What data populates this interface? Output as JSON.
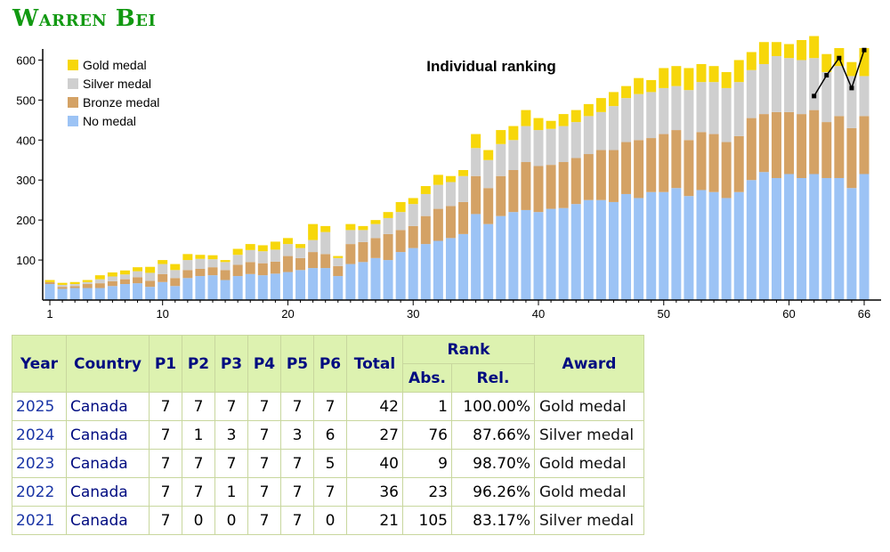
{
  "title": "Warren Bei",
  "chart_data": {
    "type": "bar",
    "title": "Individual ranking",
    "stacked": true,
    "xlabel": "",
    "ylabel": "",
    "ylim": [
      0,
      650
    ],
    "yticks": [
      100,
      200,
      300,
      400,
      500,
      600
    ],
    "xtick_labels": [
      "1",
      "10",
      "20",
      "30",
      "40",
      "50",
      "60",
      "66"
    ],
    "xtick_values": [
      1,
      10,
      20,
      30,
      40,
      50,
      60,
      66
    ],
    "grid": false,
    "legend_position": "top-left",
    "colors": {
      "Gold medal": "#f7d70a",
      "Silver medal": "#cfcfcf",
      "Bronze medal": "#d4a265",
      "No medal": "#9cc3f5"
    },
    "categories": [
      1,
      2,
      3,
      4,
      5,
      6,
      7,
      8,
      9,
      10,
      11,
      12,
      13,
      14,
      15,
      16,
      17,
      18,
      19,
      20,
      21,
      22,
      23,
      24,
      25,
      26,
      27,
      28,
      29,
      30,
      31,
      32,
      33,
      34,
      35,
      36,
      37,
      38,
      39,
      40,
      41,
      42,
      43,
      44,
      45,
      46,
      47,
      48,
      49,
      50,
      51,
      52,
      53,
      54,
      55,
      56,
      57,
      58,
      59,
      60,
      61,
      62,
      63,
      64,
      65,
      66
    ],
    "series": [
      {
        "name": "No medal",
        "values": [
          40,
          28,
          30,
          30,
          30,
          35,
          40,
          42,
          33,
          45,
          35,
          55,
          60,
          62,
          50,
          60,
          65,
          62,
          66,
          70,
          75,
          80,
          80,
          60,
          90,
          95,
          105,
          100,
          120,
          130,
          140,
          148,
          155,
          165,
          215,
          190,
          210,
          220,
          225,
          220,
          228,
          230,
          240,
          250,
          250,
          245,
          265,
          255,
          270,
          270,
          280,
          260,
          275,
          270,
          255,
          270,
          300,
          320,
          305,
          315,
          305,
          315,
          305,
          305,
          280,
          315
        ]
      },
      {
        "name": "Bronze medal",
        "values": [
          5,
          5,
          5,
          10,
          12,
          12,
          12,
          15,
          15,
          20,
          20,
          20,
          18,
          20,
          25,
          28,
          30,
          30,
          30,
          40,
          30,
          40,
          35,
          25,
          50,
          50,
          50,
          65,
          55,
          55,
          70,
          80,
          80,
          80,
          95,
          90,
          100,
          105,
          120,
          115,
          110,
          115,
          115,
          115,
          125,
          130,
          130,
          145,
          135,
          145,
          145,
          140,
          145,
          145,
          140,
          140,
          155,
          145,
          165,
          155,
          160,
          160,
          140,
          155,
          150,
          145
        ]
      },
      {
        "name": "Silver medal",
        "values": [
          0,
          5,
          5,
          5,
          10,
          12,
          12,
          15,
          20,
          25,
          20,
          25,
          25,
          20,
          20,
          25,
          30,
          30,
          30,
          30,
          25,
          30,
          55,
          20,
          35,
          30,
          35,
          40,
          45,
          55,
          55,
          60,
          60,
          65,
          70,
          70,
          80,
          75,
          90,
          90,
          90,
          90,
          90,
          95,
          95,
          110,
          110,
          115,
          115,
          115,
          110,
          125,
          125,
          130,
          135,
          135,
          120,
          125,
          140,
          135,
          135,
          130,
          125,
          125,
          130,
          100
        ]
      },
      {
        "name": "Gold medal",
        "values": [
          5,
          5,
          5,
          5,
          10,
          10,
          10,
          10,
          15,
          10,
          15,
          15,
          10,
          10,
          5,
          15,
          15,
          15,
          20,
          15,
          10,
          40,
          15,
          5,
          15,
          10,
          10,
          15,
          25,
          15,
          20,
          25,
          15,
          15,
          35,
          25,
          35,
          35,
          40,
          30,
          20,
          30,
          30,
          30,
          35,
          35,
          30,
          40,
          30,
          50,
          50,
          55,
          45,
          40,
          40,
          55,
          45,
          55,
          35,
          35,
          50,
          55,
          45,
          45,
          35,
          70
        ]
      }
    ],
    "overlay_line": {
      "name": "Warren Bei rank",
      "points": [
        [
          62,
          510
        ],
        [
          63,
          562
        ],
        [
          64,
          605
        ],
        [
          65,
          530
        ],
        [
          66,
          625
        ]
      ]
    }
  },
  "table": {
    "headers": {
      "year": "Year",
      "country": "Country",
      "p1": "P1",
      "p2": "P2",
      "p3": "P3",
      "p4": "P4",
      "p5": "P5",
      "p6": "P6",
      "total": "Total",
      "rank": "Rank",
      "abs": "Abs.",
      "rel": "Rel.",
      "award": "Award"
    },
    "sort_indicator": "▼",
    "rows": [
      {
        "year": "2025",
        "country": "Canada",
        "p1": "7",
        "p2": "7",
        "p3": "7",
        "p4": "7",
        "p5": "7",
        "p6": "7",
        "total": "42",
        "abs": "1",
        "rel": "100.00%",
        "award": "Gold medal"
      },
      {
        "year": "2024",
        "country": "Canada",
        "p1": "7",
        "p2": "1",
        "p3": "3",
        "p4": "7",
        "p5": "3",
        "p6": "6",
        "total": "27",
        "abs": "76",
        "rel": "87.66%",
        "award": "Silver medal"
      },
      {
        "year": "2023",
        "country": "Canada",
        "p1": "7",
        "p2": "7",
        "p3": "7",
        "p4": "7",
        "p5": "7",
        "p6": "5",
        "total": "40",
        "abs": "9",
        "rel": "98.70%",
        "award": "Gold medal"
      },
      {
        "year": "2022",
        "country": "Canada",
        "p1": "7",
        "p2": "7",
        "p3": "1",
        "p4": "7",
        "p5": "7",
        "p6": "7",
        "total": "36",
        "abs": "23",
        "rel": "96.26%",
        "award": "Gold medal"
      },
      {
        "year": "2021",
        "country": "Canada",
        "p1": "7",
        "p2": "0",
        "p3": "0",
        "p4": "7",
        "p5": "7",
        "p6": "0",
        "total": "21",
        "abs": "105",
        "rel": "83.17%",
        "award": "Silver medal"
      }
    ]
  }
}
